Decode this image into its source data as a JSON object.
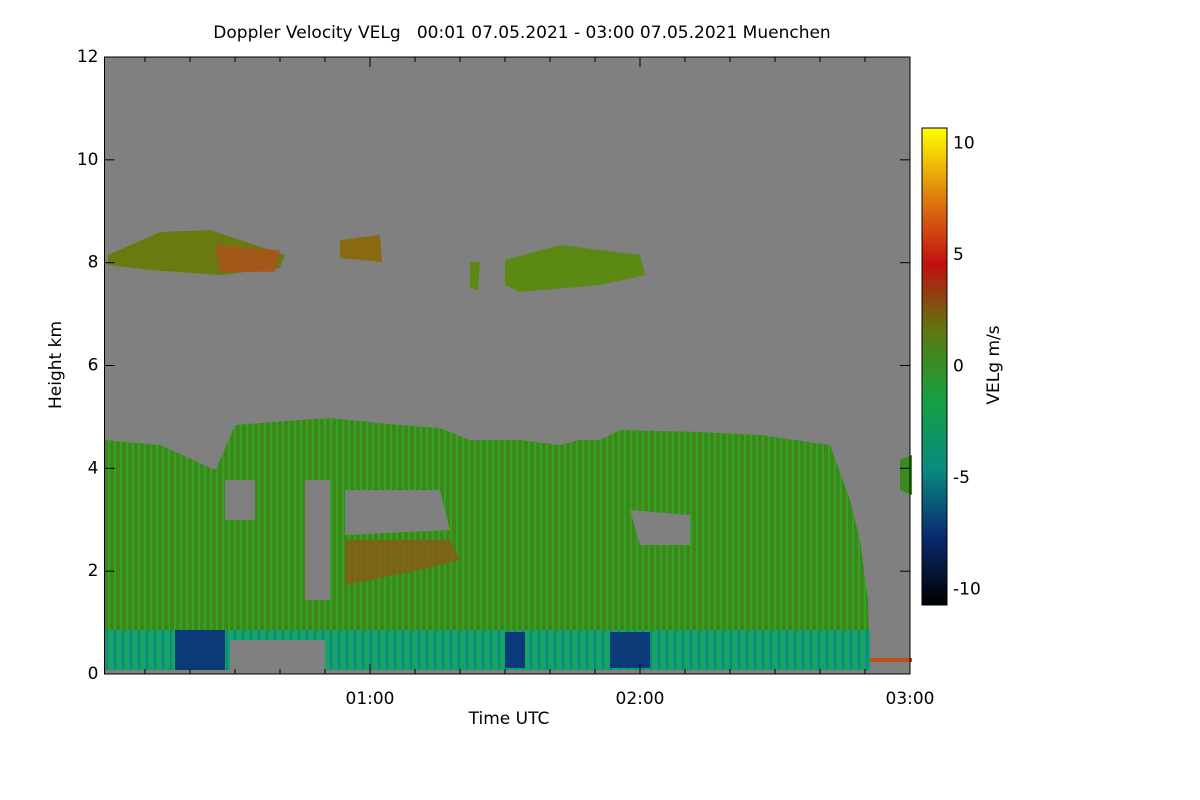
{
  "chart_data": {
    "type": "heatmap",
    "title": "Doppler Velocity VELg   00:01 07.05.2021 - 03:00 07.05.2021 Muenchen",
    "xlabel": "Time UTC",
    "ylabel": "Height km",
    "xlim": [
      1,
      180
    ],
    "xticks": [
      {
        "value": 60,
        "label": "01:00"
      },
      {
        "value": 120,
        "label": "02:00"
      },
      {
        "value": 180,
        "label": "03:00"
      }
    ],
    "xminorticks": [
      10,
      20,
      30,
      40,
      50,
      70,
      80,
      90,
      100,
      110,
      130,
      140,
      150,
      160,
      170
    ],
    "ylim": [
      0,
      12
    ],
    "yticks": [
      0,
      2,
      4,
      6,
      8,
      10,
      12
    ],
    "colorbar": {
      "label": "VELg m/s",
      "lim": [
        -10.7,
        10.7
      ],
      "ticks": [
        -10,
        -5,
        0,
        5,
        10
      ],
      "colors": [
        "#000000",
        "#0a2a70",
        "#0a8a80",
        "#14a040",
        "#5a7a10",
        "#c01010",
        "#e08010",
        "#ffff00"
      ]
    }
  }
}
